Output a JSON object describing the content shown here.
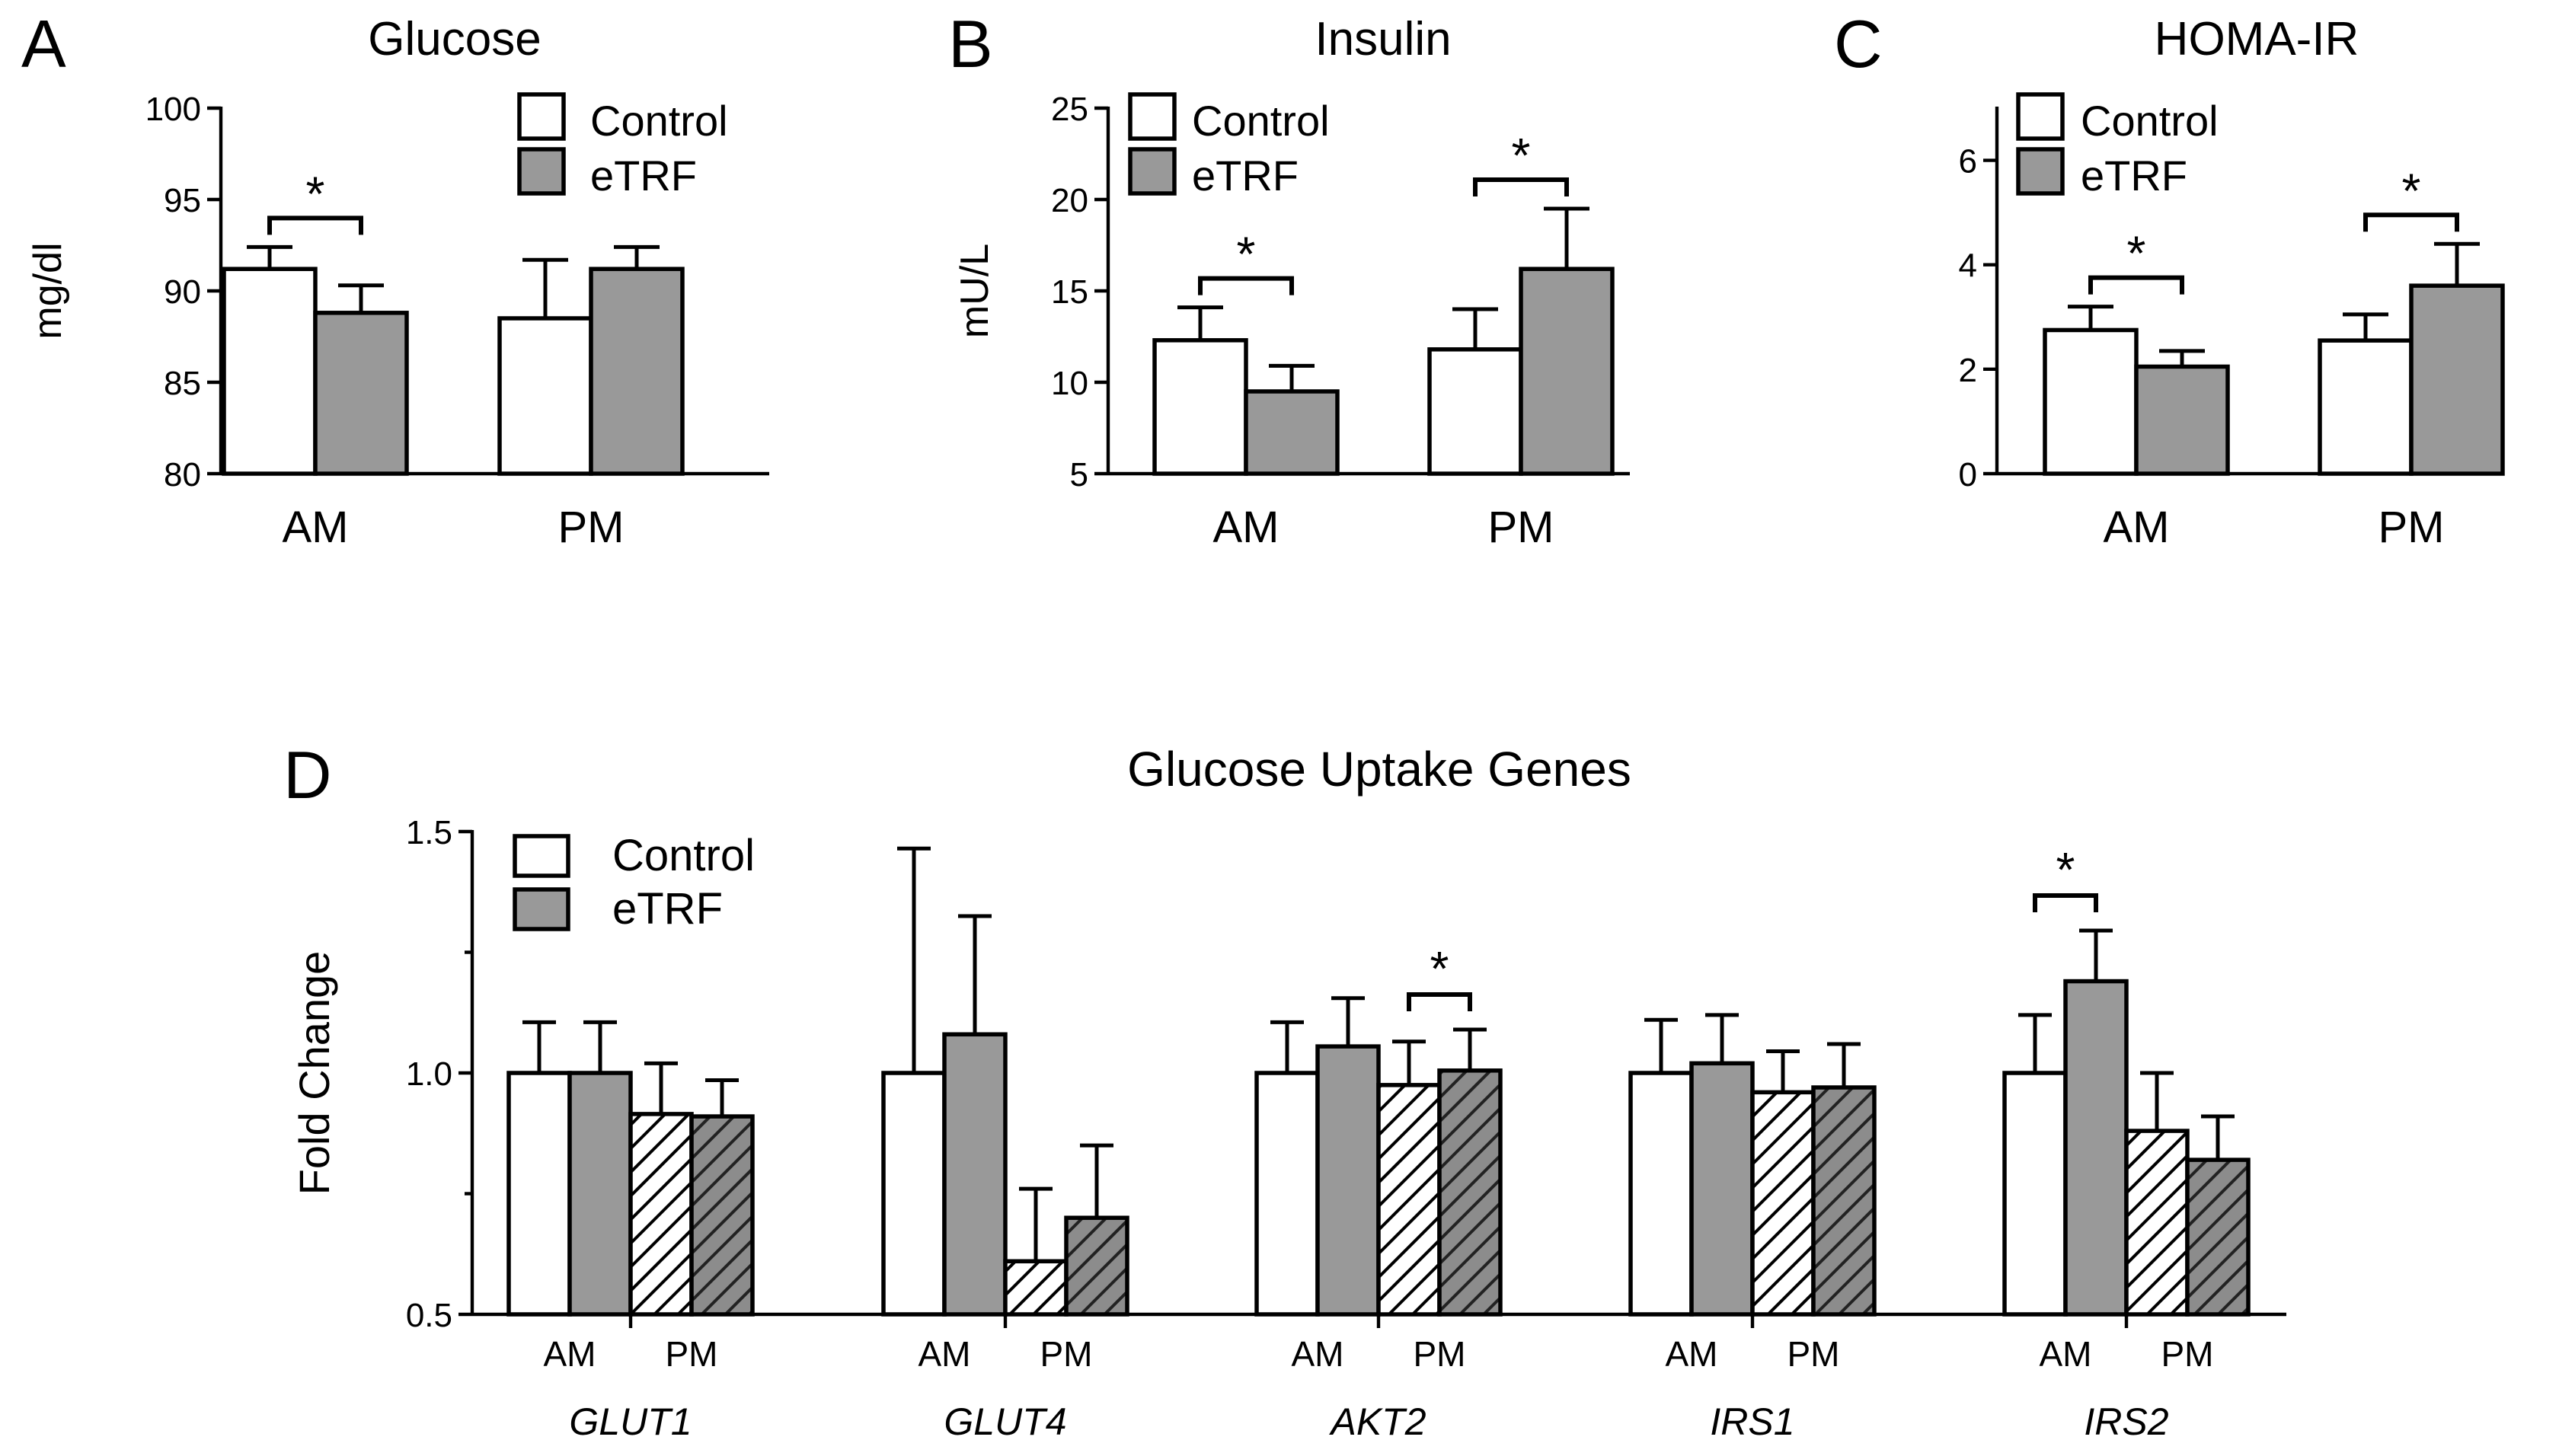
{
  "colors": {
    "control": "#ffffff",
    "etrf": "#999999",
    "outline": "#000000",
    "hatch_etrf_bg": "#8c8c8c"
  },
  "chart_data": [
    {
      "panel": "A",
      "type": "bar",
      "title": "Glucose",
      "ylabel": "mg/dl",
      "xlabel": "",
      "ylim": [
        80,
        100
      ],
      "yticks": [
        80,
        85,
        90,
        95,
        100
      ],
      "categories": [
        "AM",
        "PM"
      ],
      "legend": [
        "Control",
        "eTRF"
      ],
      "legend_position": "top-right",
      "series": [
        {
          "name": "Control",
          "values": [
            91.2,
            88.5
          ],
          "errors": [
            1.2,
            3.2
          ]
        },
        {
          "name": "eTRF",
          "values": [
            88.8,
            91.2
          ],
          "errors": [
            1.5,
            1.2
          ]
        }
      ],
      "significance": [
        {
          "category": "AM",
          "label": "*"
        }
      ]
    },
    {
      "panel": "B",
      "type": "bar",
      "title": "Insulin",
      "ylabel": "mU/L",
      "xlabel": "",
      "ylim": [
        5,
        25
      ],
      "yticks": [
        5,
        10,
        15,
        20,
        25
      ],
      "categories": [
        "AM",
        "PM"
      ],
      "legend": [
        "Control",
        "eTRF"
      ],
      "legend_position": "top-left",
      "series": [
        {
          "name": "Control",
          "values": [
            12.3,
            11.8
          ],
          "errors": [
            1.8,
            2.2
          ]
        },
        {
          "name": "eTRF",
          "values": [
            9.5,
            16.2
          ],
          "errors": [
            1.4,
            3.3
          ]
        }
      ],
      "significance": [
        {
          "category": "AM",
          "label": "*"
        },
        {
          "category": "PM",
          "label": "*"
        }
      ]
    },
    {
      "panel": "C",
      "type": "bar",
      "title": "HOMA-IR",
      "ylabel": "",
      "xlabel": "",
      "ylim": [
        0,
        7
      ],
      "yticks": [
        0,
        2,
        4,
        6
      ],
      "categories": [
        "AM",
        "PM"
      ],
      "legend": [
        "Control",
        "eTRF"
      ],
      "legend_position": "top-left",
      "series": [
        {
          "name": "Control",
          "values": [
            2.75,
            2.55
          ],
          "errors": [
            0.45,
            0.5
          ]
        },
        {
          "name": "eTRF",
          "values": [
            2.05,
            3.6
          ],
          "errors": [
            0.3,
            0.8
          ]
        }
      ],
      "significance": [
        {
          "category": "AM",
          "label": "*"
        },
        {
          "category": "PM",
          "label": "*"
        }
      ]
    },
    {
      "panel": "D",
      "type": "bar",
      "title": "Glucose Uptake Genes",
      "ylabel": "Fold Change",
      "xlabel": "",
      "ylim": [
        0.5,
        1.5
      ],
      "yticks": [
        0.5,
        1.0,
        1.5
      ],
      "ytick_labels": [
        "0.5",
        "1.0",
        "1.5"
      ],
      "legend": [
        "Control",
        "eTRF"
      ],
      "legend_position": "top-left",
      "time_labels": [
        "AM",
        "PM"
      ],
      "note": "PM bars are hatched",
      "genes": [
        {
          "name": "GLUT1",
          "values": [
            1.0,
            1.0,
            0.915,
            0.91
          ],
          "errors": [
            0.105,
            0.105,
            0.105,
            0.075
          ]
        },
        {
          "name": "GLUT4",
          "values": [
            1.0,
            1.08,
            0.61,
            0.7
          ],
          "errors": [
            0.465,
            0.245,
            0.15,
            0.15
          ]
        },
        {
          "name": "AKT2",
          "values": [
            1.0,
            1.055,
            0.975,
            1.005
          ],
          "errors": [
            0.105,
            0.1,
            0.09,
            0.085
          ]
        },
        {
          "name": "IRS1",
          "values": [
            1.0,
            1.02,
            0.96,
            0.97
          ],
          "errors": [
            0.11,
            0.1,
            0.085,
            0.09
          ]
        },
        {
          "name": "IRS2",
          "values": [
            1.0,
            1.19,
            0.88,
            0.82
          ],
          "errors": [
            0.12,
            0.105,
            0.12,
            0.09
          ]
        }
      ],
      "significance": [
        {
          "gene": "AKT2",
          "between": "PM Control vs PM eTRF",
          "label": "*"
        },
        {
          "gene": "IRS2",
          "between": "AM Control vs AM eTRF",
          "label": "*"
        }
      ]
    }
  ]
}
